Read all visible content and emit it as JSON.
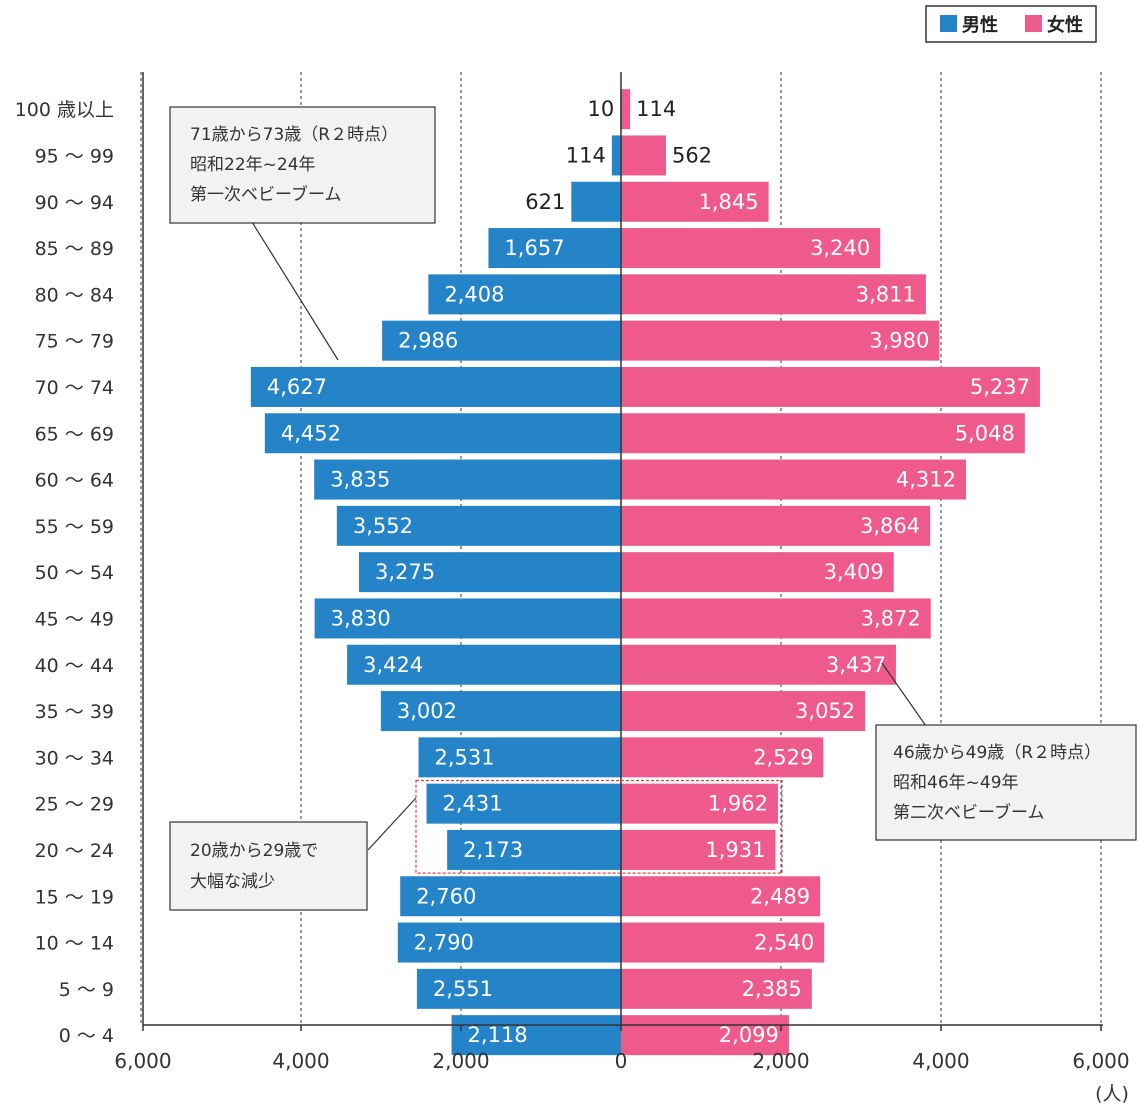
{
  "colors": {
    "male": "#2584c8",
    "female": "#ef5a8c",
    "axis": "#333333",
    "grid": "#333333",
    "note_bg": "#f2f2f2",
    "highlight": "#e04040"
  },
  "legend": {
    "male_label": "男性",
    "female_label": "女性"
  },
  "x_unit_label": "(人)",
  "chart_data": {
    "type": "bar",
    "orientation": "horizontal",
    "categories": [
      "100 歳以上",
      "95 〜 99",
      "90 〜 94",
      "85 〜 89",
      "80 〜 84",
      "75 〜 79",
      "70 〜 74",
      "65 〜 69",
      "60 〜 64",
      "55 〜 59",
      "50 〜 54",
      "45 〜 49",
      "40 〜 44",
      "35 〜 39",
      "30 〜 34",
      "25 〜 29",
      "20 〜 24",
      "15 〜 19",
      "10 〜 14",
      "5 〜 9",
      "0 〜 4"
    ],
    "series": [
      {
        "name": "男性",
        "values": [
          10,
          114,
          621,
          1657,
          2408,
          2986,
          4627,
          4452,
          3835,
          3552,
          3275,
          3830,
          3424,
          3002,
          2531,
          2431,
          2173,
          2760,
          2790,
          2551,
          2118
        ]
      },
      {
        "name": "女性",
        "values": [
          114,
          562,
          1845,
          3240,
          3811,
          3980,
          5237,
          5048,
          4312,
          3864,
          3409,
          3872,
          3437,
          3052,
          2529,
          1962,
          1931,
          2489,
          2540,
          2385,
          2099
        ]
      }
    ],
    "data_labels": {
      "male": [
        "10",
        "114",
        "621",
        "1,657",
        "2,408",
        "2,986",
        "4,627",
        "4,452",
        "3,835",
        "3,552",
        "3,275",
        "3,830",
        "3,424",
        "3,002",
        "2,531",
        "2,431",
        "2,173",
        "2,760",
        "2,790",
        "2,551",
        "2,118"
      ],
      "female": [
        "114",
        "562",
        "1,845",
        "3,240",
        "3,811",
        "3,980",
        "5,237",
        "5,048",
        "4,312",
        "3,864",
        "3,409",
        "3,872",
        "3,437",
        "3,052",
        "2,529",
        "1,962",
        "1,931",
        "2,489",
        "2,540",
        "2,385",
        "2,099"
      ]
    },
    "xlim": [
      -6000,
      6000
    ],
    "x_ticks": [
      -6000,
      -4000,
      -2000,
      0,
      2000,
      4000,
      6000
    ],
    "x_tick_labels": [
      "6,000",
      "4,000",
      "2,000",
      "0",
      "2,000",
      "4,000",
      "6,000"
    ],
    "grid": "vertical dashed at tick marks",
    "legend_position": "top-right",
    "annotations": [
      {
        "lines": [
          "71歳から73歳（R２時点）",
          "昭和22年~24年",
          "第一次ベビーブーム"
        ],
        "points_to": "70 〜 74"
      },
      {
        "lines": [
          "46歳から49歳（R２時点）",
          "昭和46年~49年",
          "第二次ベビーブーム"
        ],
        "points_to": "45 〜 49"
      },
      {
        "lines": [
          "20歳から29歳で",
          "大幅な減少"
        ],
        "points_to": "20 〜 29"
      }
    ]
  }
}
